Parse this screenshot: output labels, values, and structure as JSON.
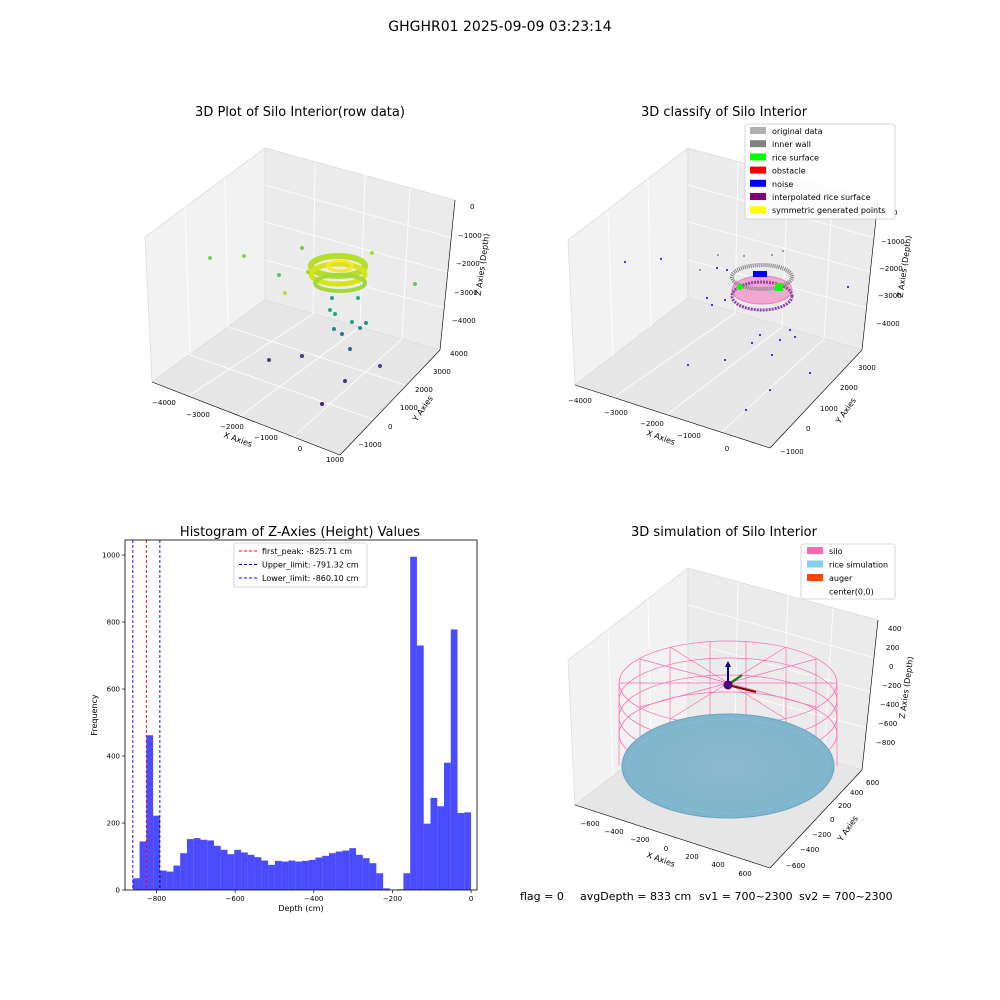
{
  "suptitle": "GHGHR01 2025-09-09 03:23:14",
  "footer": {
    "flag": "flag = 0",
    "avg_depth": "avgDepth = 833 cm",
    "sv1": "sv1 = 700~2300",
    "sv2": "sv2 = 700~2300"
  },
  "chart_data": [
    {
      "type": "scatter",
      "title": "3D Plot of Silo Interior(row data)",
      "xlabel": "X Axies",
      "ylabel": "Y Axies",
      "zlabel": "Z Axies (Depth)",
      "x_ticks": [
        "−4000",
        "−3000",
        "−2000",
        "−1000",
        "0",
        "1000"
      ],
      "y_ticks": [
        "−1000",
        "0",
        "1000",
        "2000",
        "3000",
        "4000"
      ],
      "z_ticks": [
        "0",
        "−1000",
        "−2000",
        "−3000",
        "−4000"
      ],
      "colormap": "viridis"
    },
    {
      "type": "scatter",
      "title": "3D classify of Silo Interior",
      "xlabel": "X Axies",
      "ylabel": "Y Axies",
      "zlabel": "Z Axies (Depth)",
      "x_ticks": [
        "−4000",
        "−3000",
        "−2000",
        "−1000",
        "0"
      ],
      "y_ticks": [
        "−1000",
        "0",
        "1000",
        "2000",
        "3000"
      ],
      "z_ticks": [
        "0",
        "−1000",
        "−2000",
        "−3000",
        "−4000"
      ],
      "legend_position": "top-right",
      "legend": [
        {
          "label": "original data",
          "color": "#b0b0b0"
        },
        {
          "label": "inner wall",
          "color": "#808080"
        },
        {
          "label": "rice surface",
          "color": "#00ff00"
        },
        {
          "label": "obstacle",
          "color": "#ff0000"
        },
        {
          "label": "noise",
          "color": "#0000ff"
        },
        {
          "label": "interpolated rice surface",
          "color": "#800080"
        },
        {
          "label": "symmetric generated points",
          "color": "#ffff00"
        }
      ]
    },
    {
      "type": "bar",
      "title": "Histogram of Z-Axies (Height) Values",
      "xlabel": "Depth (cm)",
      "ylabel": "Frequency",
      "xlim": [
        -880,
        15
      ],
      "ylim": [
        0,
        1045
      ],
      "x_ticks": [
        -800,
        -600,
        -400,
        -200,
        0
      ],
      "x_tick_labels": [
        "−800",
        "−600",
        "−400",
        "−200",
        "0"
      ],
      "y_ticks": [
        0,
        200,
        400,
        600,
        800,
        1000
      ],
      "bar_color": "#0000ff",
      "bins": {
        "start": -860.1,
        "width": 17.2,
        "values": [
          35,
          145,
          462,
          222,
          58,
          55,
          73,
          110,
          152,
          155,
          150,
          148,
          132,
          120,
          107,
          120,
          112,
          105,
          98,
          88,
          75,
          87,
          85,
          88,
          85,
          87,
          90,
          97,
          102,
          110,
          115,
          118,
          125,
          105,
          95,
          80,
          50,
          5,
          0,
          2,
          50,
          995,
          730,
          198,
          275,
          250,
          380,
          778,
          230,
          232
        ]
      },
      "vlines": [
        {
          "label": "first_peak: -825.71 cm",
          "x": -825.71,
          "color": "#ff0000"
        },
        {
          "label": "Upper_limit: -791.32 cm",
          "x": -791.32,
          "color": "#00008b"
        },
        {
          "label": "Lower_limit: -860.10 cm",
          "x": -860.1,
          "color": "#0000ff"
        }
      ],
      "legend_position": "top-center"
    },
    {
      "type": "scatter",
      "title": "3D simulation of Silo Interior",
      "xlabel": "X Axies",
      "ylabel": "Y Axies",
      "zlabel": "Z Axies (Depth)",
      "x_ticks": [
        "−600",
        "−400",
        "−200",
        "0",
        "200",
        "400",
        "600"
      ],
      "y_ticks": [
        "−600",
        "−400",
        "−200",
        "0",
        "200",
        "400",
        "600"
      ],
      "z_ticks": [
        "400",
        "200",
        "0",
        "−200",
        "−400",
        "−600",
        "−800"
      ],
      "legend_position": "top-right",
      "legend": [
        {
          "label": "silo",
          "color": "#ff69b4"
        },
        {
          "label": "rice simulation",
          "color": "#87ceeb"
        },
        {
          "label": "auger",
          "color": "#ff4500"
        },
        {
          "label": "center(0,0)",
          "color": ""
        }
      ]
    }
  ]
}
